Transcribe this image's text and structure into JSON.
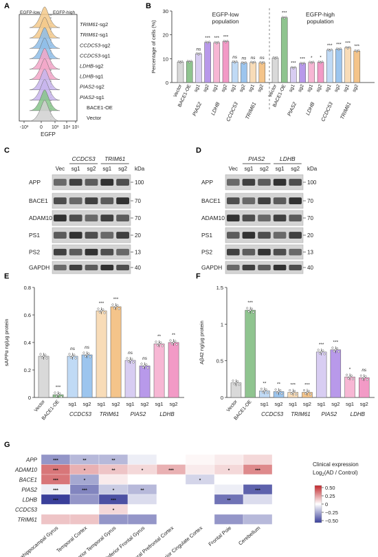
{
  "chart_data": [
    {
      "panel": "A",
      "type": "histogram",
      "gate_labels": [
        "EGFP-low",
        "EGFP-high"
      ],
      "xlabel": "EGFP",
      "x_ticks": [
        "-10³",
        "0",
        "10³",
        "10⁴",
        "10⁵"
      ],
      "tracks": [
        {
          "name": "TRIM61-sg2",
          "gene": "TRIM61",
          "suffix": "-sg2",
          "color": "#f3c98b"
        },
        {
          "name": "TRIM61-sg1",
          "gene": "TRIM61",
          "suffix": "-sg1",
          "color": "#f3c98b"
        },
        {
          "name": "CCDC53-sg2",
          "gene": "CCDC53",
          "suffix": "-sg2",
          "color": "#8ebde8"
        },
        {
          "name": "CCDC53-sg1",
          "gene": "CCDC53",
          "suffix": "-sg1",
          "color": "#8ebde8"
        },
        {
          "name": "LDHB-sg2",
          "gene": "LDHB",
          "suffix": "-sg2",
          "color": "#f2a6c8"
        },
        {
          "name": "LDHB-sg1",
          "gene": "LDHB",
          "suffix": "-sg1",
          "color": "#f2a6c8"
        },
        {
          "name": "PIAS2-sg2",
          "gene": "PIAS2",
          "suffix": "-sg2",
          "color": "#c7b4ec"
        },
        {
          "name": "PIAS2-sg1",
          "gene": "PIAS2",
          "suffix": "-sg1",
          "color": "#c7b4ec"
        },
        {
          "name": "BACE1-OE",
          "gene": "",
          "suffix": "BACE1-OE",
          "color": "#86c48a"
        },
        {
          "name": "Vector",
          "gene": "",
          "suffix": "Vector",
          "color": "#d0d0d0"
        }
      ]
    },
    {
      "panel": "B",
      "type": "bar",
      "ylabel": "Percentage of cells (%)",
      "ylim": [
        0,
        30
      ],
      "yticks": [
        0,
        10,
        20,
        30
      ],
      "groups": [
        {
          "title": "EGFP-low population",
          "title_lines": [
            "EGFP-low",
            "population"
          ],
          "values": [
            8.6,
            8.8,
            12.0,
            16.8,
            16.7,
            17.2,
            8.6,
            8.2,
            8.4,
            8.3
          ],
          "sig": [
            "",
            "",
            "ns",
            "***",
            "***",
            "***",
            "ns",
            "ns",
            "ns",
            "ns"
          ]
        },
        {
          "title": "EGFP-high population",
          "title_lines": [
            "EGFP-high",
            "population"
          ],
          "values": [
            10.3,
            27.2,
            6.2,
            8.0,
            8.4,
            8.5,
            13.6,
            14.0,
            14.6,
            13.2
          ],
          "sig": [
            "",
            "***",
            "***",
            "***",
            "*",
            "*",
            "***",
            "***",
            "***",
            "***"
          ]
        }
      ],
      "bar_labels": [
        "Vector",
        "BACE1-OE",
        "sg1",
        "sg2",
        "sg1",
        "sg2",
        "sg1",
        "sg2",
        "sg1",
        "sg2"
      ],
      "gene_labels": [
        "PIAS2",
        "LDHB",
        "CCDC53",
        "TRIM61"
      ],
      "colors": [
        "#d9d9d9",
        "#8fc48f",
        "#d8cdf2",
        "#b899ea",
        "#f7b7d4",
        "#f29ac6",
        "#c0daf5",
        "#9cc5ee",
        "#f8dcb8",
        "#f4c48a"
      ]
    },
    {
      "panel": "C",
      "type": "western_blot",
      "gene_headers": [
        "CCDC53",
        "TRIM61"
      ],
      "lane_labels": [
        "Vec",
        "sg1",
        "sg2",
        "sg1",
        "sg2"
      ],
      "kda_label": "kDa",
      "proteins": [
        "APP",
        "BACE1",
        "ADAM10",
        "PS1",
        "PS2",
        "GAPDH"
      ],
      "markers": [
        "100",
        "70",
        "70",
        "20",
        "13",
        "40"
      ]
    },
    {
      "panel": "D",
      "type": "western_blot",
      "gene_headers": [
        "PIAS2",
        "LDHB"
      ],
      "lane_labels": [
        "Vec",
        "sg1",
        "sg2",
        "sg1",
        "sg2"
      ],
      "kda_label": "kDa",
      "proteins": [
        "APP",
        "BACE1",
        "ADAM10",
        "PS1",
        "PS2",
        "GAPDH"
      ],
      "markers": [
        "100",
        "70",
        "70",
        "20",
        "13",
        "40"
      ]
    },
    {
      "panel": "E",
      "type": "bar",
      "ylabel": "sAPPα ng/μg protein",
      "ylim": [
        0,
        0.8
      ],
      "yticks": [
        0,
        0.2,
        0.4,
        0.6,
        0.8
      ],
      "categories": [
        "Vector",
        "BACE1-OE",
        "sg1",
        "sg2",
        "sg1",
        "sg2",
        "sg1",
        "sg2",
        "sg1",
        "sg2"
      ],
      "gene_labels": [
        "CCDC53",
        "TRIM61",
        "PIAS2",
        "LDHB"
      ],
      "values": [
        0.3,
        0.02,
        0.3,
        0.31,
        0.63,
        0.66,
        0.27,
        0.23,
        0.39,
        0.4
      ],
      "sig": [
        "",
        "***",
        "ns",
        "ns",
        "***",
        "***",
        "ns",
        "ns",
        "**",
        "**"
      ],
      "colors": [
        "#d9d9d9",
        "#8fc48f",
        "#c0daf5",
        "#9cc5ee",
        "#f8dcb8",
        "#f4c48a",
        "#d8cdf2",
        "#b899ea",
        "#f7b7d4",
        "#f29ac6"
      ]
    },
    {
      "panel": "F",
      "type": "bar",
      "ylabel": "Aβ42 ng/μg protein",
      "ylim": [
        0,
        1.5
      ],
      "yticks": [
        0,
        0.5,
        1.0,
        1.5
      ],
      "categories": [
        "Vector",
        "BACE1-OE",
        "sg1",
        "sg2",
        "sg1",
        "sg2",
        "sg1",
        "sg2",
        "sg1",
        "sg2"
      ],
      "gene_labels": [
        "CCDC53",
        "TRIM61",
        "PIAS2",
        "LDHB"
      ],
      "values": [
        0.2,
        1.19,
        0.09,
        0.08,
        0.07,
        0.07,
        0.62,
        0.65,
        0.28,
        0.27
      ],
      "sig": [
        "",
        "***",
        "**",
        "**",
        "***",
        "***",
        "***",
        "***",
        "*",
        "ns"
      ],
      "colors": [
        "#d9d9d9",
        "#8fc48f",
        "#c0daf5",
        "#9cc5ee",
        "#f8dcb8",
        "#f4c48a",
        "#d8cdf2",
        "#b899ea",
        "#f7b7d4",
        "#f29ac6"
      ]
    },
    {
      "panel": "G",
      "type": "heatmap",
      "rows": [
        "APP",
        "ADAM10",
        "BACE1",
        "PIAS2",
        "LDHB",
        "CCDC53",
        "TRIM61"
      ],
      "columns": [
        "Parahippocampal Gyrus",
        "Temporal Cortex",
        "Superior Temporal Gyrus",
        "Inferior Frontal Gyrus",
        "Dorsolateral Prefrontal Cortex",
        "Anterior Cingulate Cortex",
        "Frontal Pole",
        "Cerebellum"
      ],
      "values": [
        [
          -0.3,
          -0.2,
          -0.2,
          -0.05,
          0.0,
          0.02,
          0.05,
          0.1
        ],
        [
          0.35,
          0.2,
          0.15,
          0.1,
          0.2,
          0.05,
          0.1,
          0.3
        ],
        [
          0.35,
          -0.25,
          0.05,
          0.0,
          0.0,
          -0.12,
          0.0,
          0.0
        ],
        [
          -0.05,
          -0.35,
          -0.15,
          -0.2,
          0.0,
          0.0,
          -0.05,
          -0.45
        ],
        [
          -0.55,
          -0.3,
          -0.5,
          -0.1,
          0.0,
          0.0,
          -0.4,
          -0.1
        ],
        [
          0.0,
          0.0,
          0.1,
          0.0,
          0.0,
          0.0,
          0.0,
          0.0
        ],
        [
          0.15,
          0.15,
          -0.3,
          -0.3,
          0.0,
          0.0,
          -0.3,
          -0.2
        ]
      ],
      "sig": [
        [
          "***",
          "**",
          "**",
          "",
          "",
          "",
          "",
          ""
        ],
        [
          "***",
          "*",
          "**",
          "*",
          "***",
          "",
          "*",
          "***"
        ],
        [
          "***",
          "*",
          "",
          "",
          "",
          "*",
          "",
          ""
        ],
        [
          "***",
          "***",
          "*",
          "**",
          "",
          "",
          "",
          "***"
        ],
        [
          "***",
          "",
          "***",
          "",
          "",
          "",
          "**",
          ""
        ],
        [
          "",
          "",
          "*",
          "",
          "",
          "",
          "",
          ""
        ],
        [
          "",
          "",
          "",
          "",
          "",
          "",
          "",
          ""
        ]
      ],
      "colorbar_title": "Clinical expression",
      "colorbar_subtitle": "Log2(AD / Control)",
      "colorbar_ticks": [
        "0.50",
        "0.25",
        "0",
        "−0.25",
        "−0.50"
      ],
      "color_high": "#c2282d",
      "color_low": "#3a3f9a"
    }
  ],
  "panel_letters": [
    "A",
    "B",
    "C",
    "D",
    "E",
    "F",
    "G"
  ]
}
